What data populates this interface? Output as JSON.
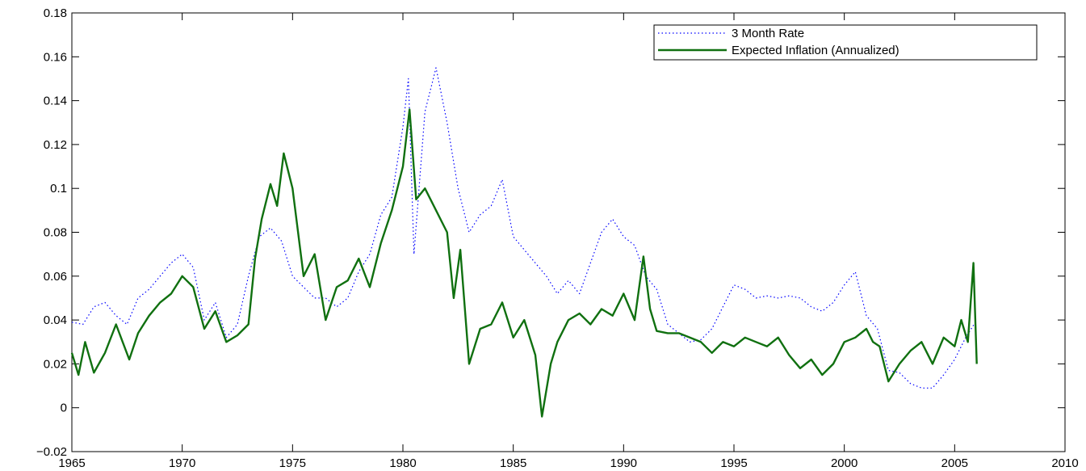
{
  "chart_data": {
    "type": "line",
    "title": "",
    "xlabel": "",
    "ylabel": "",
    "xlim": [
      1965,
      2010
    ],
    "ylim": [
      -0.02,
      0.18
    ],
    "grid": false,
    "legend_position": "top-right",
    "x_ticks": [
      1965,
      1970,
      1975,
      1980,
      1985,
      1990,
      1995,
      2000,
      2005,
      2010
    ],
    "x_tick_labels": [
      "1965",
      "1970",
      "1975",
      "1980",
      "1985",
      "1990",
      "1995",
      "2000",
      "2005",
      "2010"
    ],
    "y_ticks": [
      -0.02,
      0,
      0.02,
      0.04,
      0.06,
      0.08,
      0.1,
      0.12,
      0.14,
      0.16,
      0.18
    ],
    "y_tick_labels": [
      "−0.02",
      "0",
      "0.02",
      "0.04",
      "0.06",
      "0.08",
      "0.1",
      "0.12",
      "0.14",
      "0.16",
      "0.18"
    ],
    "series": [
      {
        "name": "3 Month Rate",
        "color": "#0000ff",
        "style": "dotted",
        "x": [
          1965.0,
          1965.5,
          1966.0,
          1966.5,
          1967.0,
          1967.5,
          1968.0,
          1968.5,
          1969.0,
          1969.5,
          1970.0,
          1970.5,
          1971.0,
          1971.5,
          1972.0,
          1972.5,
          1973.0,
          1973.5,
          1974.0,
          1974.5,
          1975.0,
          1975.5,
          1976.0,
          1976.5,
          1977.0,
          1977.5,
          1978.0,
          1978.5,
          1979.0,
          1979.5,
          1980.0,
          1980.25,
          1980.5,
          1981.0,
          1981.5,
          1982.0,
          1982.5,
          1983.0,
          1983.5,
          1984.0,
          1984.5,
          1985.0,
          1985.5,
          1986.0,
          1986.5,
          1987.0,
          1987.5,
          1988.0,
          1988.5,
          1989.0,
          1989.5,
          1990.0,
          1990.5,
          1991.0,
          1991.5,
          1992.0,
          1992.5,
          1993.0,
          1993.5,
          1994.0,
          1994.5,
          1995.0,
          1995.5,
          1996.0,
          1996.5,
          1997.0,
          1997.5,
          1998.0,
          1998.5,
          1999.0,
          1999.5,
          2000.0,
          2000.5,
          2001.0,
          2001.5,
          2002.0,
          2002.5,
          2003.0,
          2003.5,
          2004.0,
          2004.5,
          2005.0,
          2005.5,
          2006.0
        ],
        "values": [
          0.039,
          0.038,
          0.046,
          0.048,
          0.042,
          0.038,
          0.05,
          0.054,
          0.06,
          0.066,
          0.07,
          0.064,
          0.04,
          0.048,
          0.032,
          0.038,
          0.06,
          0.078,
          0.082,
          0.076,
          0.06,
          0.055,
          0.05,
          0.05,
          0.046,
          0.05,
          0.062,
          0.07,
          0.088,
          0.096,
          0.128,
          0.15,
          0.07,
          0.135,
          0.155,
          0.13,
          0.1,
          0.08,
          0.088,
          0.092,
          0.104,
          0.078,
          0.072,
          0.066,
          0.06,
          0.052,
          0.058,
          0.052,
          0.066,
          0.08,
          0.086,
          0.078,
          0.074,
          0.06,
          0.054,
          0.038,
          0.034,
          0.03,
          0.031,
          0.036,
          0.046,
          0.056,
          0.054,
          0.05,
          0.051,
          0.05,
          0.051,
          0.05,
          0.046,
          0.044,
          0.048,
          0.056,
          0.062,
          0.042,
          0.036,
          0.017,
          0.016,
          0.011,
          0.009,
          0.009,
          0.015,
          0.022,
          0.032,
          0.04
        ]
      },
      {
        "name": "Expected Inflation (Annualized)",
        "color": "#107010",
        "style": "solid",
        "x": [
          1965.0,
          1965.3,
          1965.6,
          1966.0,
          1966.5,
          1967.0,
          1967.3,
          1967.6,
          1968.0,
          1968.5,
          1969.0,
          1969.5,
          1970.0,
          1970.5,
          1971.0,
          1971.5,
          1972.0,
          1972.5,
          1973.0,
          1973.3,
          1973.6,
          1974.0,
          1974.3,
          1974.6,
          1975.0,
          1975.5,
          1976.0,
          1976.5,
          1977.0,
          1977.5,
          1978.0,
          1978.5,
          1979.0,
          1979.5,
          1980.0,
          1980.3,
          1980.6,
          1981.0,
          1981.5,
          1982.0,
          1982.3,
          1982.6,
          1983.0,
          1983.5,
          1984.0,
          1984.5,
          1985.0,
          1985.5,
          1986.0,
          1986.3,
          1986.7,
          1987.0,
          1987.5,
          1988.0,
          1988.5,
          1989.0,
          1989.5,
          1990.0,
          1990.5,
          1990.9,
          1991.2,
          1991.5,
          1992.0,
          1992.5,
          1993.0,
          1993.5,
          1994.0,
          1994.5,
          1995.0,
          1995.5,
          1996.0,
          1996.5,
          1997.0,
          1997.5,
          1998.0,
          1998.5,
          1999.0,
          1999.5,
          2000.0,
          2000.5,
          2001.0,
          2001.3,
          2001.6,
          2002.0,
          2002.5,
          2003.0,
          2003.5,
          2004.0,
          2004.5,
          2005.0,
          2005.3,
          2005.6,
          2005.85,
          2006.0
        ],
        "values": [
          0.025,
          0.015,
          0.03,
          0.016,
          0.025,
          0.038,
          0.03,
          0.022,
          0.034,
          0.042,
          0.048,
          0.052,
          0.06,
          0.055,
          0.036,
          0.044,
          0.03,
          0.033,
          0.038,
          0.068,
          0.086,
          0.102,
          0.092,
          0.116,
          0.1,
          0.06,
          0.07,
          0.04,
          0.055,
          0.058,
          0.068,
          0.055,
          0.075,
          0.09,
          0.11,
          0.136,
          0.095,
          0.1,
          0.09,
          0.08,
          0.05,
          0.072,
          0.02,
          0.036,
          0.038,
          0.048,
          0.032,
          0.04,
          0.024,
          -0.004,
          0.02,
          0.03,
          0.04,
          0.043,
          0.038,
          0.045,
          0.042,
          0.052,
          0.04,
          0.069,
          0.045,
          0.035,
          0.034,
          0.034,
          0.032,
          0.03,
          0.025,
          0.03,
          0.028,
          0.032,
          0.03,
          0.028,
          0.032,
          0.024,
          0.018,
          0.022,
          0.015,
          0.02,
          0.03,
          0.032,
          0.036,
          0.03,
          0.028,
          0.012,
          0.02,
          0.026,
          0.03,
          0.02,
          0.032,
          0.028,
          0.04,
          0.03,
          0.066,
          0.02
        ]
      }
    ]
  }
}
